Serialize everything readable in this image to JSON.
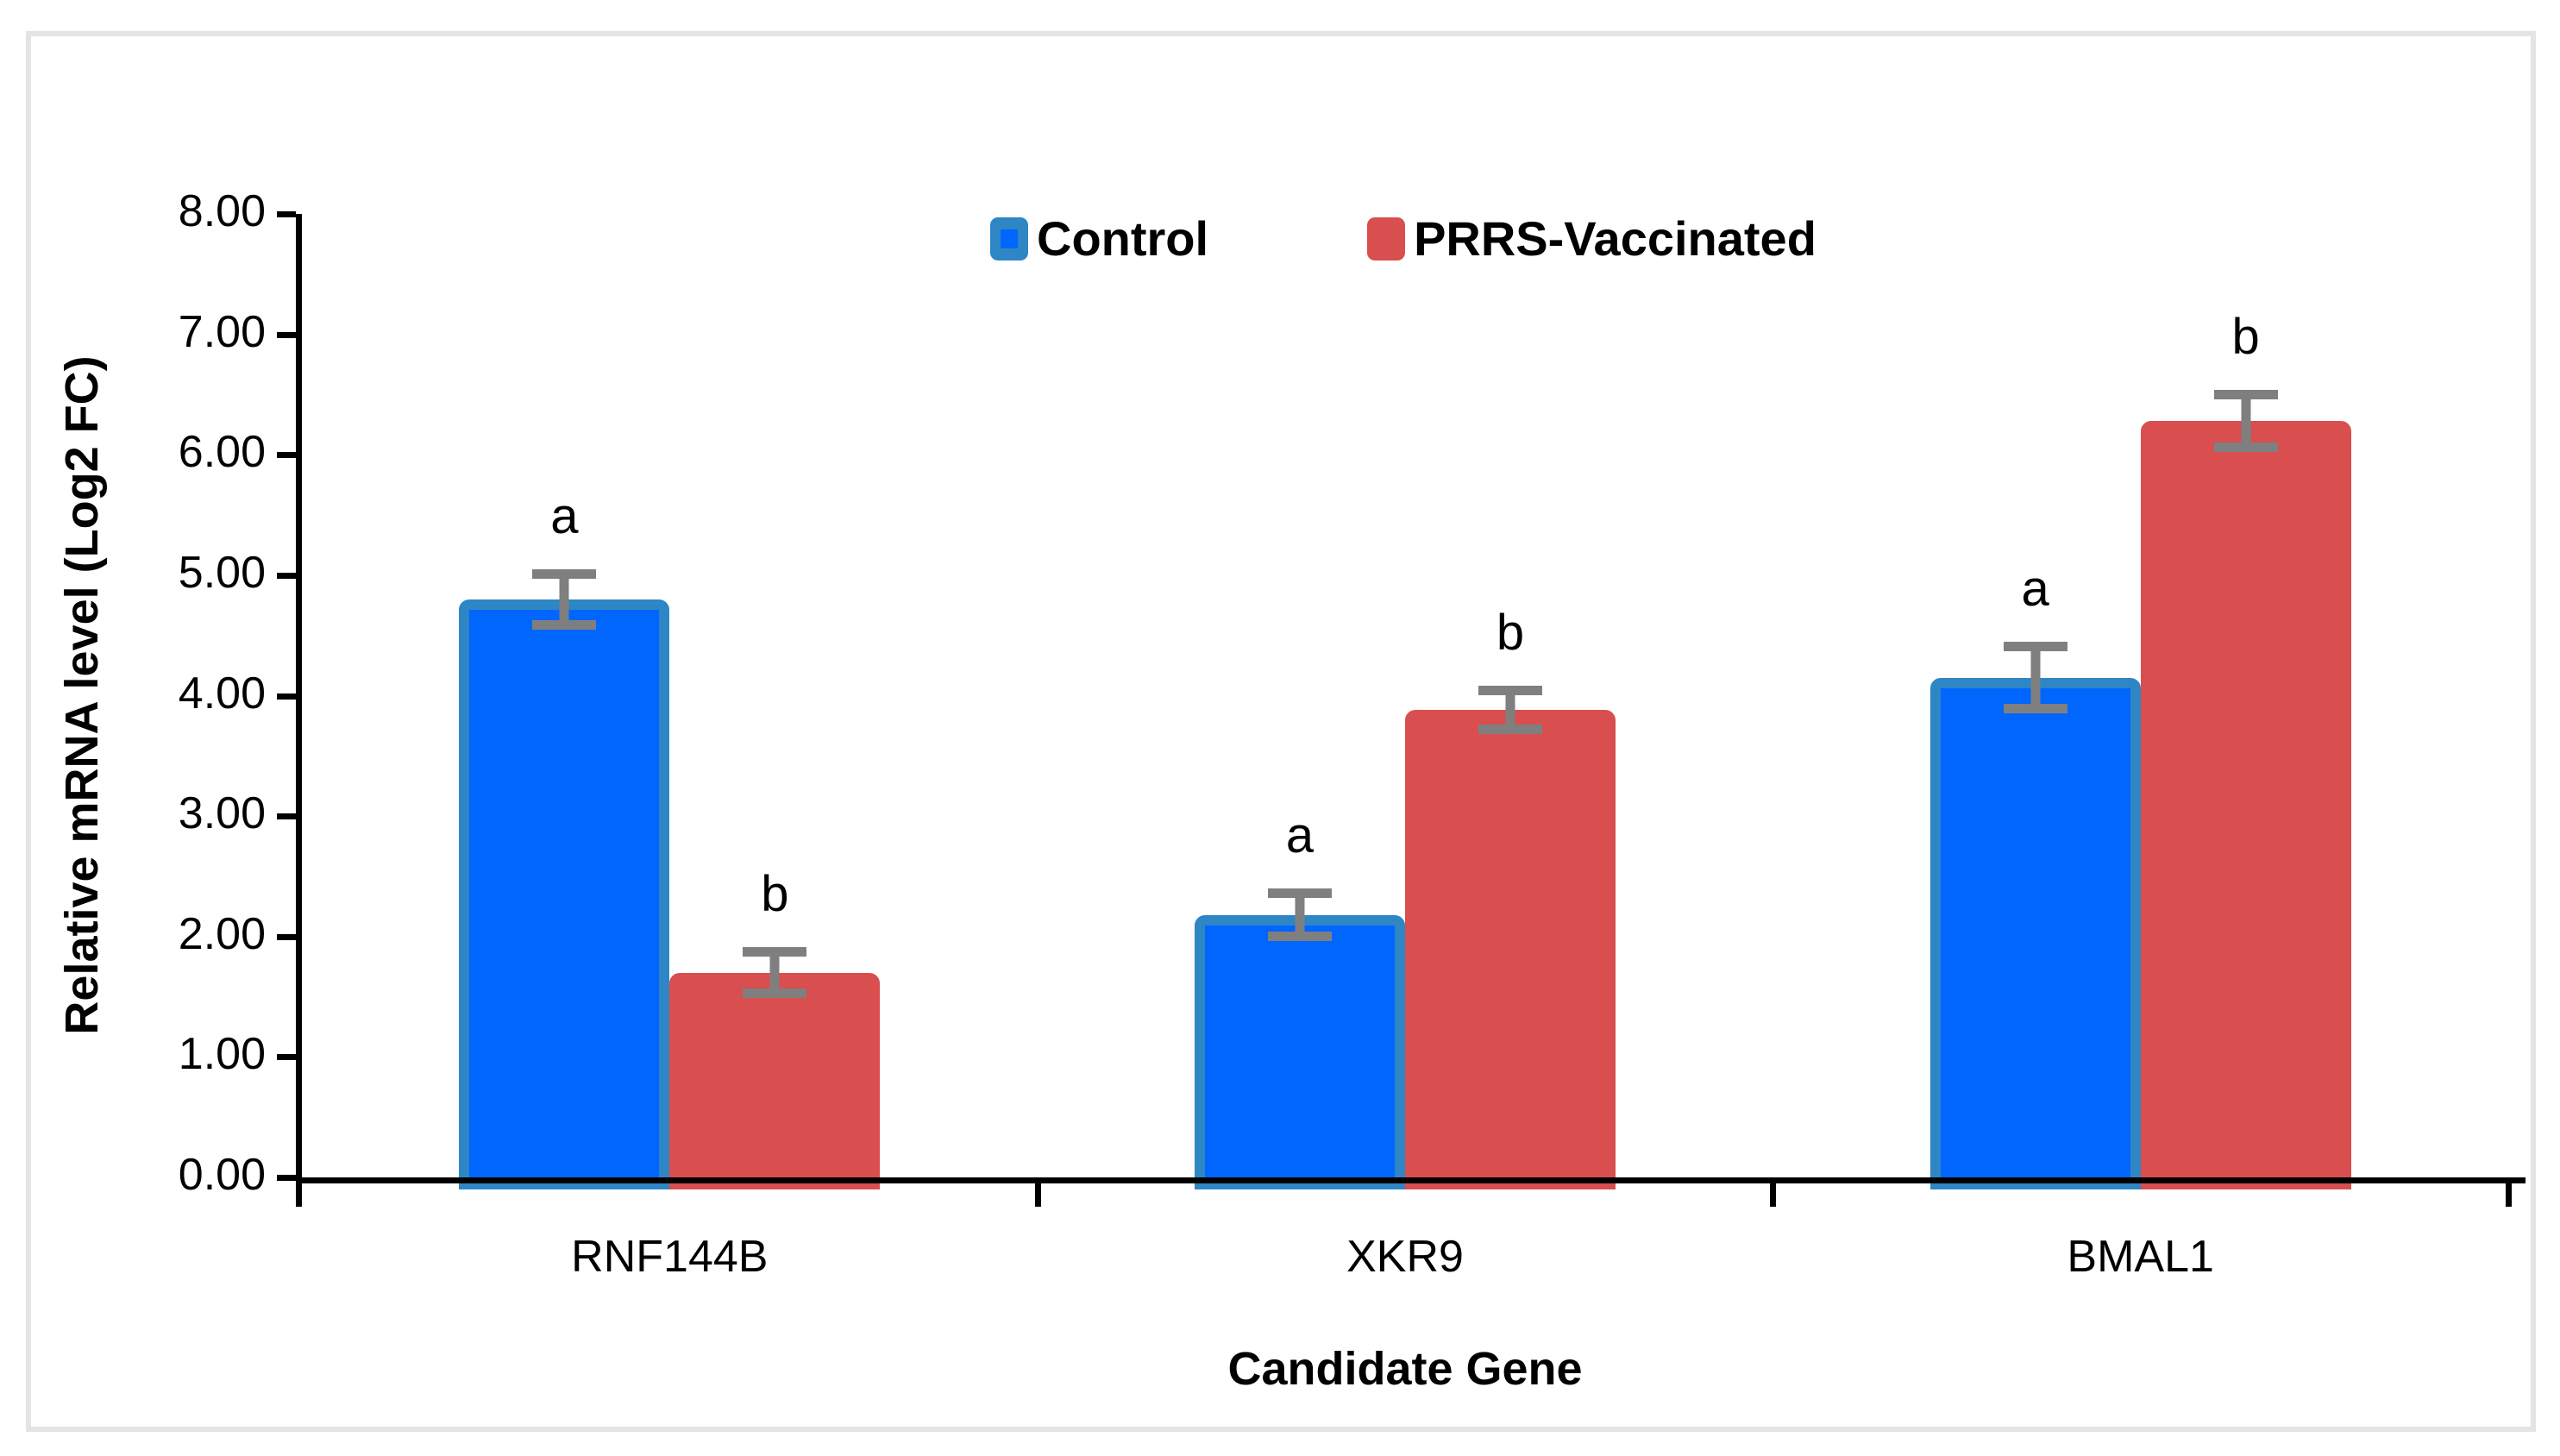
{
  "figure": {
    "background_color": "#ffffff",
    "frame_color": "#e4e4e4",
    "axis_color": "#000000"
  },
  "chart_data": {
    "type": "bar",
    "title": "",
    "xlabel": "Candidate Gene",
    "ylabel": "Relative mRNA level (Log2 FC)",
    "categories": [
      "RNF144B",
      "XKR9",
      "BMAL1"
    ],
    "series": [
      {
        "name": "Control",
        "values": [
          4.8,
          2.18,
          4.15
        ],
        "errors": [
          0.25,
          0.22,
          0.3
        ],
        "letters": [
          "a",
          "a",
          "a"
        ],
        "fill_color": "#0066fe",
        "border_color": "#2e86c4"
      },
      {
        "name": "PRRS-Vaccinated",
        "values": [
          1.7,
          3.88,
          6.28
        ],
        "errors": [
          0.21,
          0.2,
          0.26
        ],
        "letters": [
          "b",
          "b",
          "b"
        ],
        "fill_color": "#d94e4e",
        "border_color": "#d94e4e"
      }
    ],
    "ylim": [
      0,
      8
    ],
    "ytick_step": 1,
    "ytick_labels": [
      "0.00",
      "1.00",
      "2.00",
      "3.00",
      "4.00",
      "5.00",
      "6.00",
      "7.00",
      "8.00"
    ],
    "grid": false,
    "legend_position": "top-center",
    "error_color": "#7f7f7f"
  }
}
